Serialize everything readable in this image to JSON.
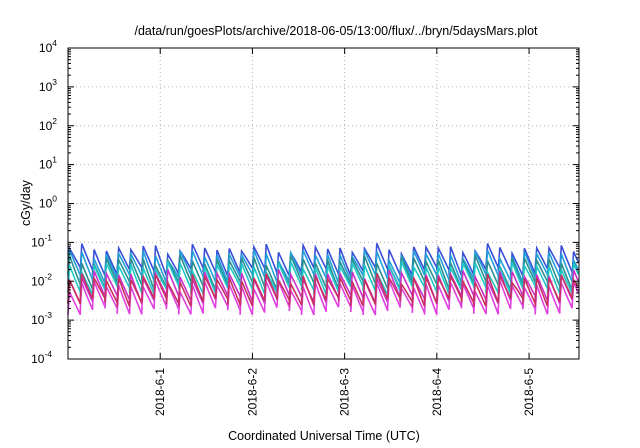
{
  "chart_data": {
    "type": "line",
    "title": "/data/run/goesPlots/archive/2018-06-05/13:00/flux/../bryn/5daysMars.plot",
    "xlabel": "Coordinated Universal Time (UTC)",
    "ylabel": "cGy/day",
    "yscale": "log",
    "ylim": [
      0.0001,
      10000
    ],
    "xlim": [
      "2018-05-31 00:00",
      "2018-06-05 13:00"
    ],
    "grid": true,
    "legend": "none",
    "y_ticks": [
      {
        "base": "10",
        "exp": "-4",
        "value": 0.0001
      },
      {
        "base": "10",
        "exp": "-3",
        "value": 0.001
      },
      {
        "base": "10",
        "exp": "-2",
        "value": 0.01
      },
      {
        "base": "10",
        "exp": "-1",
        "value": 0.1
      },
      {
        "base": "10",
        "exp": "0",
        "value": 1
      },
      {
        "base": "10",
        "exp": "1",
        "value": 10
      },
      {
        "base": "10",
        "exp": "2",
        "value": 100
      },
      {
        "base": "10",
        "exp": "3",
        "value": 1000
      },
      {
        "base": "10",
        "exp": "4",
        "value": 10000
      }
    ],
    "x_ticks": [
      {
        "label": "2018-6-1",
        "value": "2018-06-01 00:00"
      },
      {
        "label": "2018-6-2",
        "value": "2018-06-02 00:00"
      },
      {
        "label": "2018-6-3",
        "value": "2018-06-03 00:00"
      },
      {
        "label": "2018-6-4",
        "value": "2018-06-04 00:00"
      },
      {
        "label": "2018-6-5",
        "value": "2018-06-05 00:00"
      }
    ],
    "pattern": {
      "description_period_hours": 3.2,
      "note": "sawtooth: sharp rise then decay each period"
    },
    "series": [
      {
        "color": "#3a4fd8",
        "peak": 0.07,
        "trough": 0.018
      },
      {
        "color": "#1fa0d8",
        "peak": 0.05,
        "trough": 0.012
      },
      {
        "color": "#2b8f8f",
        "peak": 0.035,
        "trough": 0.008
      },
      {
        "color": "#20c8c8",
        "peak": 0.025,
        "trough": 0.006
      },
      {
        "color": "#c830c8",
        "peak": 0.015,
        "trough": 0.0035
      },
      {
        "color": "#e040e0",
        "peak": 0.008,
        "trough": 0.0018
      },
      {
        "color": "#c83060",
        "peak": 0.012,
        "trough": 0.003
      }
    ]
  }
}
